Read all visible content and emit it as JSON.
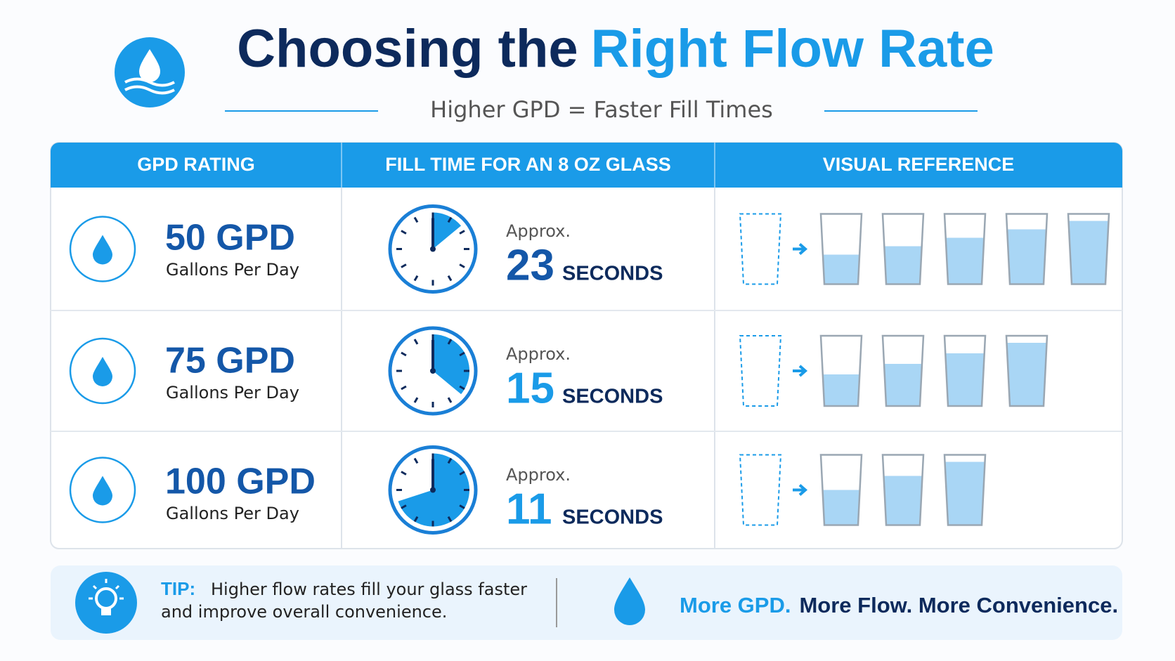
{
  "header": {
    "title_dark": "Choosing the",
    "title_blue": "Right Flow Rate",
    "subtitle": "Higher GPD = Faster Fill Times"
  },
  "table": {
    "headers": [
      "GPD RATING",
      "FILL TIME FOR AN 8 OZ GLASS",
      "VISUAL REFERENCE"
    ],
    "rows": [
      {
        "gpd": "50 GPD",
        "unit": "Gallons Per Day",
        "approx": "Approx.",
        "seconds": "23",
        "seconds_unit": "SECONDS"
      },
      {
        "gpd": "75 GPD",
        "unit": "Gallons Per Day",
        "approx": "Approx.",
        "seconds": "15",
        "seconds_unit": "SECONDS"
      },
      {
        "gpd": "100 GPD",
        "unit": "Gallons Per Day",
        "approx": "Approx.",
        "seconds": "11",
        "seconds_unit": "SECONDS"
      }
    ]
  },
  "tip": {
    "label": "TIP:",
    "lines": [
      "Higher flow rates fill your glass faster",
      "and improve overall convenience."
    ]
  },
  "slogan": {
    "blue": "More GPD.",
    "dark": "More Flow. More Convenience."
  }
}
